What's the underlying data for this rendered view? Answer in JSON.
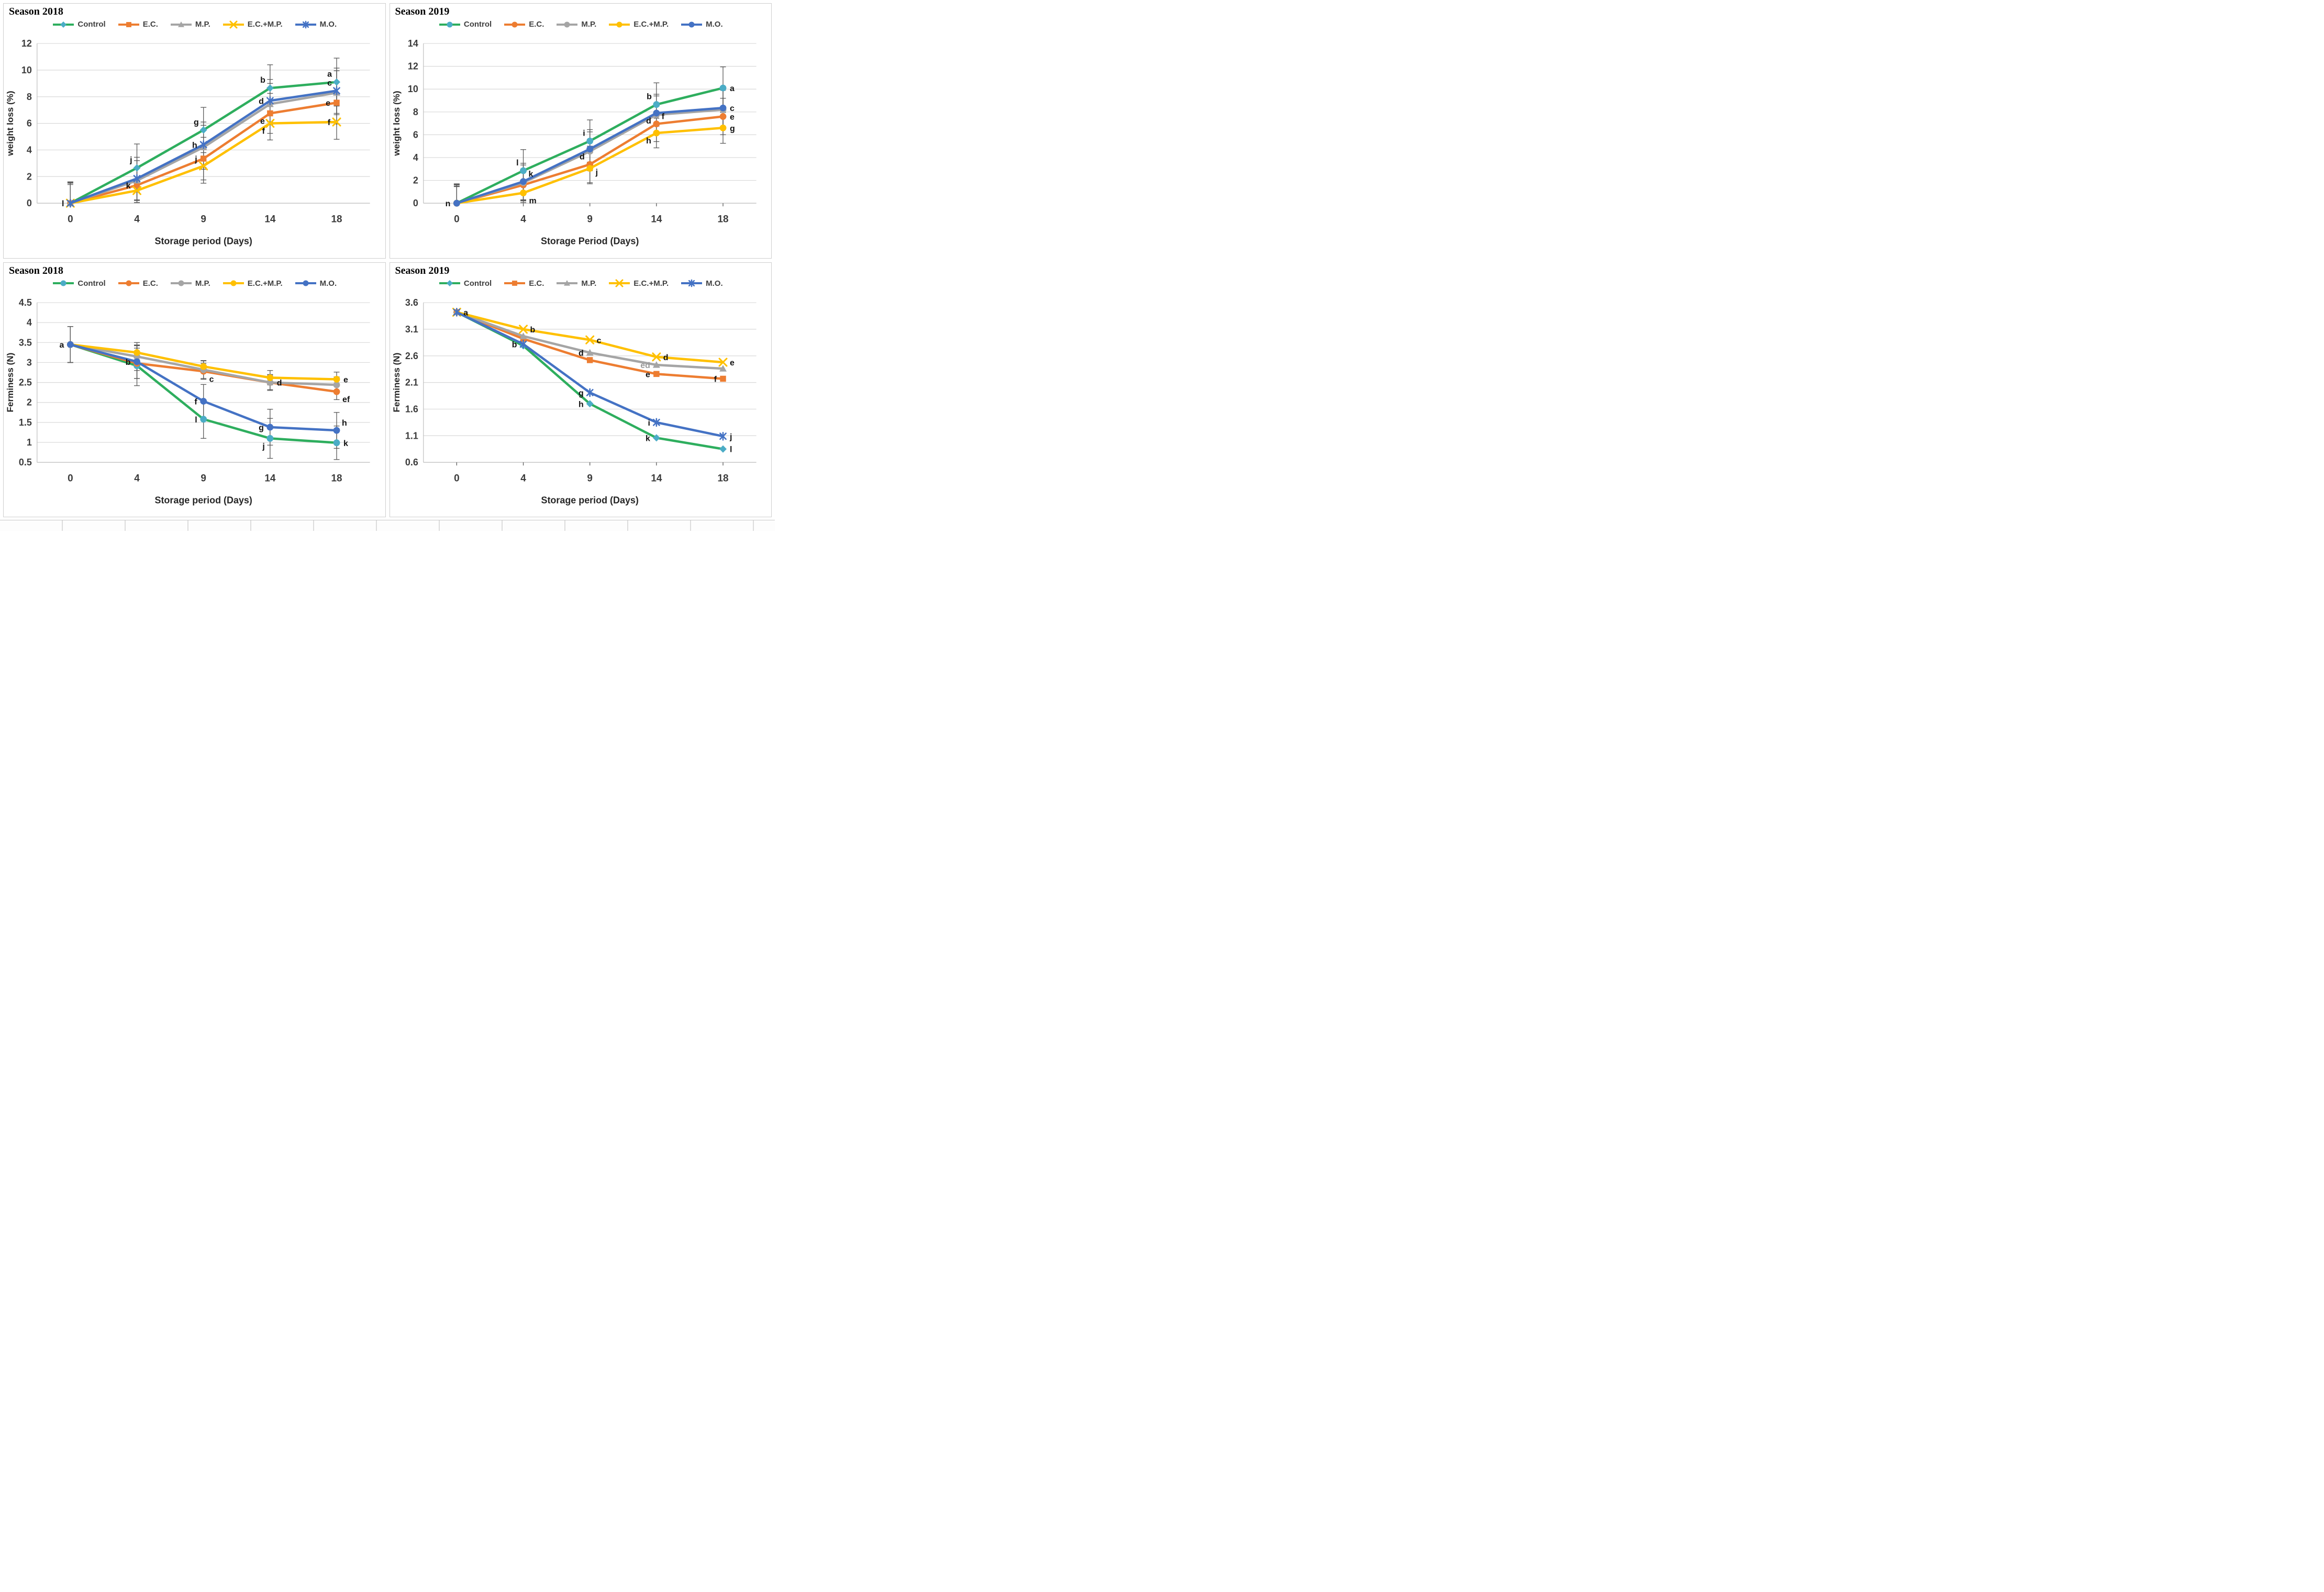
{
  "figure": {
    "background": "#ffffff"
  },
  "colors": {
    "green": "#2eae5e",
    "teal_marker": "#4bacc6",
    "orange": "#ed7d31",
    "gray": "#a5a5a5",
    "yellow": "#ffc000",
    "blue": "#4472c4",
    "grid_line": "#d9d9d9",
    "axis_line": "#bfbfbf",
    "error_bar": "#595959",
    "tick_text": "#3b3b3b",
    "axis_title_text": "#262626",
    "letter_text": "#111111"
  },
  "chart_data": [
    {
      "id": "weight-loss-2018",
      "type": "line",
      "title": "Season 2018",
      "xlabel": "Storage period (Days)",
      "ylabel": "weight loss (%)",
      "x_categories": [
        "0",
        "4",
        "9",
        "14",
        "18"
      ],
      "ymin": 0,
      "ymax": 12,
      "y_ticks": [
        {
          "v": 12,
          "t": "12"
        },
        {
          "v": 10,
          "t": "10"
        },
        {
          "v": 8,
          "t": "8"
        },
        {
          "v": 6,
          "t": "6"
        },
        {
          "v": 4,
          "t": "4"
        },
        {
          "v": 2,
          "t": "2"
        },
        {
          "v": 0,
          "t": "0"
        }
      ],
      "x_tick_marks": false,
      "grid": true,
      "legend_position": "top",
      "series": [
        {
          "name": "Control",
          "line_color": "#2eae5e",
          "marker": "diamond",
          "marker_color": "#4bacc6",
          "values": [
            0,
            2.65,
            5.5,
            8.65,
            9.1
          ],
          "err": [
            1.6,
            1.8,
            1.7,
            1.75,
            1.8
          ],
          "point_labels": [
            {
              "i": 0,
              "t": "l",
              "pos": "l"
            },
            {
              "i": 1,
              "t": "j",
              "pos": "al"
            },
            {
              "i": 2,
              "t": "g",
              "pos": "al"
            },
            {
              "i": 3,
              "t": "b",
              "pos": "al"
            },
            {
              "i": 4,
              "t": "a",
              "pos": "al"
            }
          ]
        },
        {
          "name": "E.C.",
          "line_color": "#ed7d31",
          "marker": "square",
          "marker_color": "#ed7d31",
          "values": [
            0,
            1.35,
            3.35,
            6.75,
            7.55
          ],
          "err": [
            1.5,
            1.3,
            1.6,
            1.5,
            1.6
          ],
          "point_labels": [
            {
              "i": 1,
              "t": "k",
              "pos": "l"
            },
            {
              "i": 2,
              "t": "j",
              "pos": "l"
            },
            {
              "i": 3,
              "t": "e",
              "pos": "bl"
            },
            {
              "i": 4,
              "t": "e",
              "pos": "l"
            }
          ]
        },
        {
          "name": "M.P.",
          "line_color": "#a5a5a5",
          "marker": "triangle",
          "marker_color": "#a5a5a5",
          "values": [
            0,
            1.7,
            4.2,
            7.45,
            8.3
          ],
          "err": [
            1.55,
            1.5,
            1.65,
            1.55,
            1.65
          ],
          "point_labels": []
        },
        {
          "name": "E.C.+M.P.",
          "line_color": "#ffc000",
          "marker": "x",
          "marker_color": "#ffc000",
          "values": [
            0,
            0.95,
            2.8,
            6.0,
            6.1
          ],
          "err": [
            1.4,
            0.9,
            1.3,
            1.25,
            1.3
          ],
          "point_labels": [
            {
              "i": 3,
              "t": "f",
              "pos": "bl"
            },
            {
              "i": 4,
              "t": "f",
              "pos": "l"
            }
          ]
        },
        {
          "name": "M.O.",
          "line_color": "#4472c4",
          "marker": "asterisk",
          "marker_color": "#4472c4",
          "values": [
            0,
            1.85,
            4.4,
            7.7,
            8.45
          ],
          "err": [
            1.6,
            1.6,
            1.7,
            1.6,
            1.7
          ],
          "point_labels": [
            {
              "i": 2,
              "t": "h",
              "pos": "l"
            },
            {
              "i": 3,
              "t": "d",
              "pos": "l"
            },
            {
              "i": 4,
              "t": "c",
              "pos": "al"
            }
          ]
        }
      ]
    },
    {
      "id": "weight-loss-2019",
      "type": "line",
      "title": "Season 2019",
      "xlabel": "Storage Period (Days)",
      "ylabel": "weight loss (%)",
      "x_categories": [
        "0",
        "4",
        "9",
        "14",
        "18"
      ],
      "ymin": 0,
      "ymax": 14,
      "y_ticks": [
        {
          "v": 14,
          "t": "14"
        },
        {
          "v": 12,
          "t": "12"
        },
        {
          "v": 10,
          "t": "10"
        },
        {
          "v": 8,
          "t": "8"
        },
        {
          "v": 6,
          "t": "6"
        },
        {
          "v": 4,
          "t": "4"
        },
        {
          "v": 2,
          "t": "2"
        },
        {
          "v": 0,
          "t": "0"
        }
      ],
      "x_tick_marks": true,
      "grid": true,
      "legend_position": "top",
      "series": [
        {
          "name": "Control",
          "line_color": "#2eae5e",
          "marker": "circle",
          "marker_color": "#4bacc6",
          "values": [
            0,
            2.85,
            5.45,
            8.65,
            10.1
          ],
          "err": [
            1.7,
            1.85,
            1.85,
            1.9,
            1.85
          ],
          "point_labels": [
            {
              "i": 0,
              "t": "n",
              "pos": "l"
            },
            {
              "i": 1,
              "t": "l",
              "pos": "al"
            },
            {
              "i": 2,
              "t": "i",
              "pos": "al"
            },
            {
              "i": 3,
              "t": "b",
              "pos": "al"
            },
            {
              "i": 4,
              "t": "a",
              "pos": "r"
            }
          ]
        },
        {
          "name": "E.C.",
          "line_color": "#ed7d31",
          "marker": "circle",
          "marker_color": "#ed7d31",
          "values": [
            0,
            1.6,
            3.4,
            6.95,
            7.6
          ],
          "err": [
            1.5,
            1.4,
            1.6,
            1.55,
            1.6
          ],
          "point_labels": [
            {
              "i": 2,
              "t": "j",
              "pos": "br"
            },
            {
              "i": 3,
              "t": "f",
              "pos": "ar"
            },
            {
              "i": 4,
              "t": "e",
              "pos": "r"
            }
          ]
        },
        {
          "name": "M.P.",
          "line_color": "#a5a5a5",
          "marker": "circle",
          "marker_color": "#a5a5a5",
          "values": [
            0,
            1.8,
            4.55,
            7.75,
            8.2
          ],
          "err": [
            1.6,
            1.55,
            1.7,
            1.65,
            1.7
          ],
          "point_labels": []
        },
        {
          "name": "E.C.+M.P.",
          "line_color": "#ffc000",
          "marker": "circle",
          "marker_color": "#ffc000",
          "values": [
            0,
            0.9,
            3.05,
            6.15,
            6.6
          ],
          "err": [
            1.45,
            0.85,
            1.35,
            1.3,
            1.35
          ],
          "point_labels": [
            {
              "i": 1,
              "t": "m",
              "pos": "br"
            },
            {
              "i": 3,
              "t": "h",
              "pos": "bl"
            },
            {
              "i": 4,
              "t": "g",
              "pos": "r"
            }
          ]
        },
        {
          "name": "M.O.",
          "line_color": "#4472c4",
          "marker": "circle",
          "marker_color": "#4472c4",
          "values": [
            0,
            1.9,
            4.75,
            7.9,
            8.35
          ],
          "err": [
            1.65,
            1.6,
            1.7,
            1.65,
            1.7
          ],
          "point_labels": [
            {
              "i": 1,
              "t": "k",
              "pos": "ar"
            },
            {
              "i": 2,
              "t": "d",
              "pos": "bl"
            },
            {
              "i": 3,
              "t": "d",
              "pos": "bl"
            },
            {
              "i": 4,
              "t": "c",
              "pos": "r"
            }
          ]
        }
      ]
    },
    {
      "id": "ferminess-2018",
      "type": "line",
      "title": "Season 2018",
      "xlabel": "Storage period (Days)",
      "ylabel": "Ferminess (N)",
      "x_categories": [
        "0",
        "4",
        "9",
        "14",
        "18"
      ],
      "ymin": 0.5,
      "ymax": 4.5,
      "y_ticks": [
        {
          "v": 4.5,
          "t": "4.5"
        },
        {
          "v": 4,
          "t": "4"
        },
        {
          "v": 3.5,
          "t": "3.5"
        },
        {
          "v": 3,
          "t": "3"
        },
        {
          "v": 2.5,
          "t": "2.5"
        },
        {
          "v": 2,
          "t": "2"
        },
        {
          "v": 1.5,
          "t": "1.5"
        },
        {
          "v": 1,
          "t": "1"
        },
        {
          "v": 0.5,
          "t": "0.5"
        }
      ],
      "x_tick_marks": false,
      "grid": true,
      "legend_position": "top",
      "series": [
        {
          "name": "Control",
          "line_color": "#2eae5e",
          "marker": "circle",
          "marker_color": "#4bacc6",
          "values": [
            3.45,
            2.92,
            1.58,
            1.1,
            0.99
          ],
          "err": [
            0.45,
            0.5,
            0.48,
            0.5,
            0.42
          ],
          "point_labels": [
            {
              "i": 2,
              "t": "l",
              "pos": "l"
            },
            {
              "i": 3,
              "t": "j",
              "pos": "bl"
            },
            {
              "i": 4,
              "t": "k",
              "pos": "r"
            }
          ]
        },
        {
          "name": "E.C.",
          "line_color": "#ed7d31",
          "marker": "circle",
          "marker_color": "#ed7d31",
          "values": [
            3.45,
            2.98,
            2.78,
            2.5,
            2.27
          ],
          "err": [
            0.45,
            0.38,
            0.2,
            0.18,
            0.2
          ],
          "point_labels": [
            {
              "i": 2,
              "t": "c",
              "pos": "br"
            },
            {
              "i": 4,
              "t": "ef",
              "pos": "br"
            }
          ]
        },
        {
          "name": "M.P.",
          "line_color": "#a5a5a5",
          "marker": "circle",
          "marker_color": "#a5a5a5",
          "values": [
            3.45,
            3.15,
            2.82,
            2.5,
            2.44
          ],
          "err": [
            0.45,
            0.35,
            0.22,
            0.2,
            0.2
          ],
          "point_labels": [
            {
              "i": 3,
              "t": "d",
              "pos": "r"
            }
          ]
        },
        {
          "name": "E.C.+M.P.",
          "line_color": "#ffc000",
          "marker": "circle",
          "marker_color": "#ffc000",
          "values": [
            3.45,
            3.25,
            2.9,
            2.62,
            2.58
          ],
          "err": [
            0.45,
            0.18,
            0.15,
            0.18,
            0.18
          ],
          "point_labels": [
            {
              "i": 4,
              "t": "e",
              "pos": "r"
            }
          ]
        },
        {
          "name": "M.O.",
          "line_color": "#4472c4",
          "marker": "circle",
          "marker_color": "#4472c4",
          "values": [
            3.45,
            3.02,
            2.03,
            1.38,
            1.3
          ],
          "err": [
            0.45,
            0.42,
            0.42,
            0.45,
            0.45
          ],
          "point_labels": [
            {
              "i": 0,
              "t": "a",
              "pos": "l"
            },
            {
              "i": 1,
              "t": "b",
              "pos": "l"
            },
            {
              "i": 2,
              "t": "f",
              "pos": "l"
            },
            {
              "i": 3,
              "t": "g",
              "pos": "l"
            },
            {
              "i": 4,
              "t": "h",
              "pos": "ar"
            }
          ]
        }
      ]
    },
    {
      "id": "ferminess-2019",
      "type": "line",
      "title": "Season 2019",
      "xlabel": "Storage period (Days)",
      "ylabel": "Ferminess (N)",
      "x_categories": [
        "0",
        "4",
        "9",
        "14",
        "18"
      ],
      "ymin": 0.6,
      "ymax": 3.6,
      "y_ticks": [
        {
          "v": 3.6,
          "t": "3.6"
        },
        {
          "v": 3.1,
          "t": "3.1"
        },
        {
          "v": 2.6,
          "t": "2.6"
        },
        {
          "v": 2.1,
          "t": "2.1"
        },
        {
          "v": 1.6,
          "t": "1.6"
        },
        {
          "v": 1.1,
          "t": "1.1"
        },
        {
          "v": 0.6,
          "t": "0.6"
        }
      ],
      "x_tick_marks": true,
      "grid": true,
      "legend_position": "top",
      "series": [
        {
          "name": "Control",
          "line_color": "#2eae5e",
          "marker": "diamond",
          "marker_color": "#4bacc6",
          "values": [
            3.42,
            2.79,
            1.7,
            1.06,
            0.85
          ],
          "err": null,
          "point_labels": [
            {
              "i": 2,
              "t": "h",
              "pos": "l"
            },
            {
              "i": 3,
              "t": "k",
              "pos": "l"
            },
            {
              "i": 4,
              "t": "l",
              "pos": "r"
            }
          ]
        },
        {
          "name": "E.C.",
          "line_color": "#ed7d31",
          "marker": "square",
          "marker_color": "#ed7d31",
          "values": [
            3.42,
            2.92,
            2.52,
            2.26,
            2.17
          ],
          "err": null,
          "point_labels": [
            {
              "i": 3,
              "t": "e",
              "pos": "l"
            },
            {
              "i": 4,
              "t": "f",
              "pos": "l"
            }
          ]
        },
        {
          "name": "M.P.",
          "line_color": "#a5a5a5",
          "marker": "triangle",
          "marker_color": "#a5a5a5",
          "values": [
            3.42,
            2.97,
            2.66,
            2.43,
            2.36
          ],
          "err": null,
          "point_labels": [
            {
              "i": 2,
              "t": "d",
              "pos": "l"
            },
            {
              "i": 3,
              "t": "ed",
              "pos": "l",
              "c": "#9a9a9a"
            }
          ]
        },
        {
          "name": "E.C.+M.P.",
          "line_color": "#ffc000",
          "marker": "x",
          "marker_color": "#ffc000",
          "values": [
            3.42,
            3.1,
            2.9,
            2.58,
            2.48
          ],
          "err": null,
          "point_labels": [
            {
              "i": 0,
              "t": "a",
              "pos": "r"
            },
            {
              "i": 1,
              "t": "b",
              "pos": "r"
            },
            {
              "i": 2,
              "t": "c",
              "pos": "r"
            },
            {
              "i": 3,
              "t": "d",
              "pos": "r"
            },
            {
              "i": 4,
              "t": "e",
              "pos": "r"
            }
          ]
        },
        {
          "name": "M.O.",
          "line_color": "#4472c4",
          "marker": "asterisk",
          "marker_color": "#4472c4",
          "values": [
            3.42,
            2.82,
            1.91,
            1.35,
            1.09
          ],
          "err": null,
          "point_labels": [
            {
              "i": 1,
              "t": "b",
              "pos": "l"
            },
            {
              "i": 2,
              "t": "g",
              "pos": "l"
            },
            {
              "i": 3,
              "t": "i",
              "pos": "l"
            },
            {
              "i": 4,
              "t": "j",
              "pos": "r"
            }
          ]
        }
      ]
    }
  ]
}
